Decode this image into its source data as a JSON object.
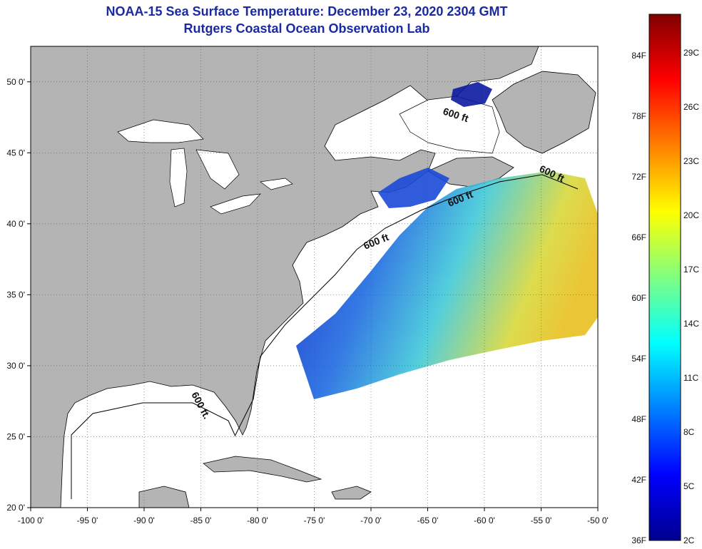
{
  "title": {
    "line1": "NOAA-15 Sea Surface Temperature:  December 23, 2020 2304 GMT",
    "line2": "Rutgers Coastal Ocean Observation Lab"
  },
  "map": {
    "lon_range": [
      -100,
      -50
    ],
    "lat_range": [
      20,
      52.5
    ],
    "lon_ticks": [
      {
        "value": -100,
        "label": "-100 0'"
      },
      {
        "value": -95,
        "label": "-95 0'"
      },
      {
        "value": -90,
        "label": "-90 0'"
      },
      {
        "value": -85,
        "label": "-85 0'"
      },
      {
        "value": -80,
        "label": "-80 0'"
      },
      {
        "value": -75,
        "label": "-75 0'"
      },
      {
        "value": -70,
        "label": "-70 0'"
      },
      {
        "value": -65,
        "label": "-65 0'"
      },
      {
        "value": -60,
        "label": "-60 0'"
      },
      {
        "value": -55,
        "label": "-55 0'"
      },
      {
        "value": -50,
        "label": "-50 0'"
      }
    ],
    "lat_ticks": [
      {
        "value": 20,
        "label": "20 0'"
      },
      {
        "value": 25,
        "label": "25 0'"
      },
      {
        "value": 30,
        "label": "30 0'"
      },
      {
        "value": 35,
        "label": "35 0'"
      },
      {
        "value": 40,
        "label": "40 0'"
      },
      {
        "value": 45,
        "label": "45 0'"
      },
      {
        "value": 50,
        "label": "50 0'"
      }
    ],
    "depth_labels": [
      "600 ft",
      "600 ft",
      "600 ft",
      "600 ft",
      "600 ft."
    ],
    "colors": {
      "land": "#b4b4b4",
      "ocean": "#ffffff",
      "coast": "#000000"
    }
  },
  "colorbar": {
    "fahrenheit": [
      "84F",
      "78F",
      "72F",
      "66F",
      "60F",
      "54F",
      "48F",
      "42F",
      "36F"
    ],
    "celsius": [
      "29C",
      "26C",
      "23C",
      "20C",
      "17C",
      "14C",
      "11C",
      "8C",
      "5C",
      "2C"
    ],
    "colors": [
      "#00008f",
      "#0000ff",
      "#0080ff",
      "#00ffff",
      "#80ff80",
      "#ffff00",
      "#ff8000",
      "#ff0000",
      "#800000"
    ]
  }
}
